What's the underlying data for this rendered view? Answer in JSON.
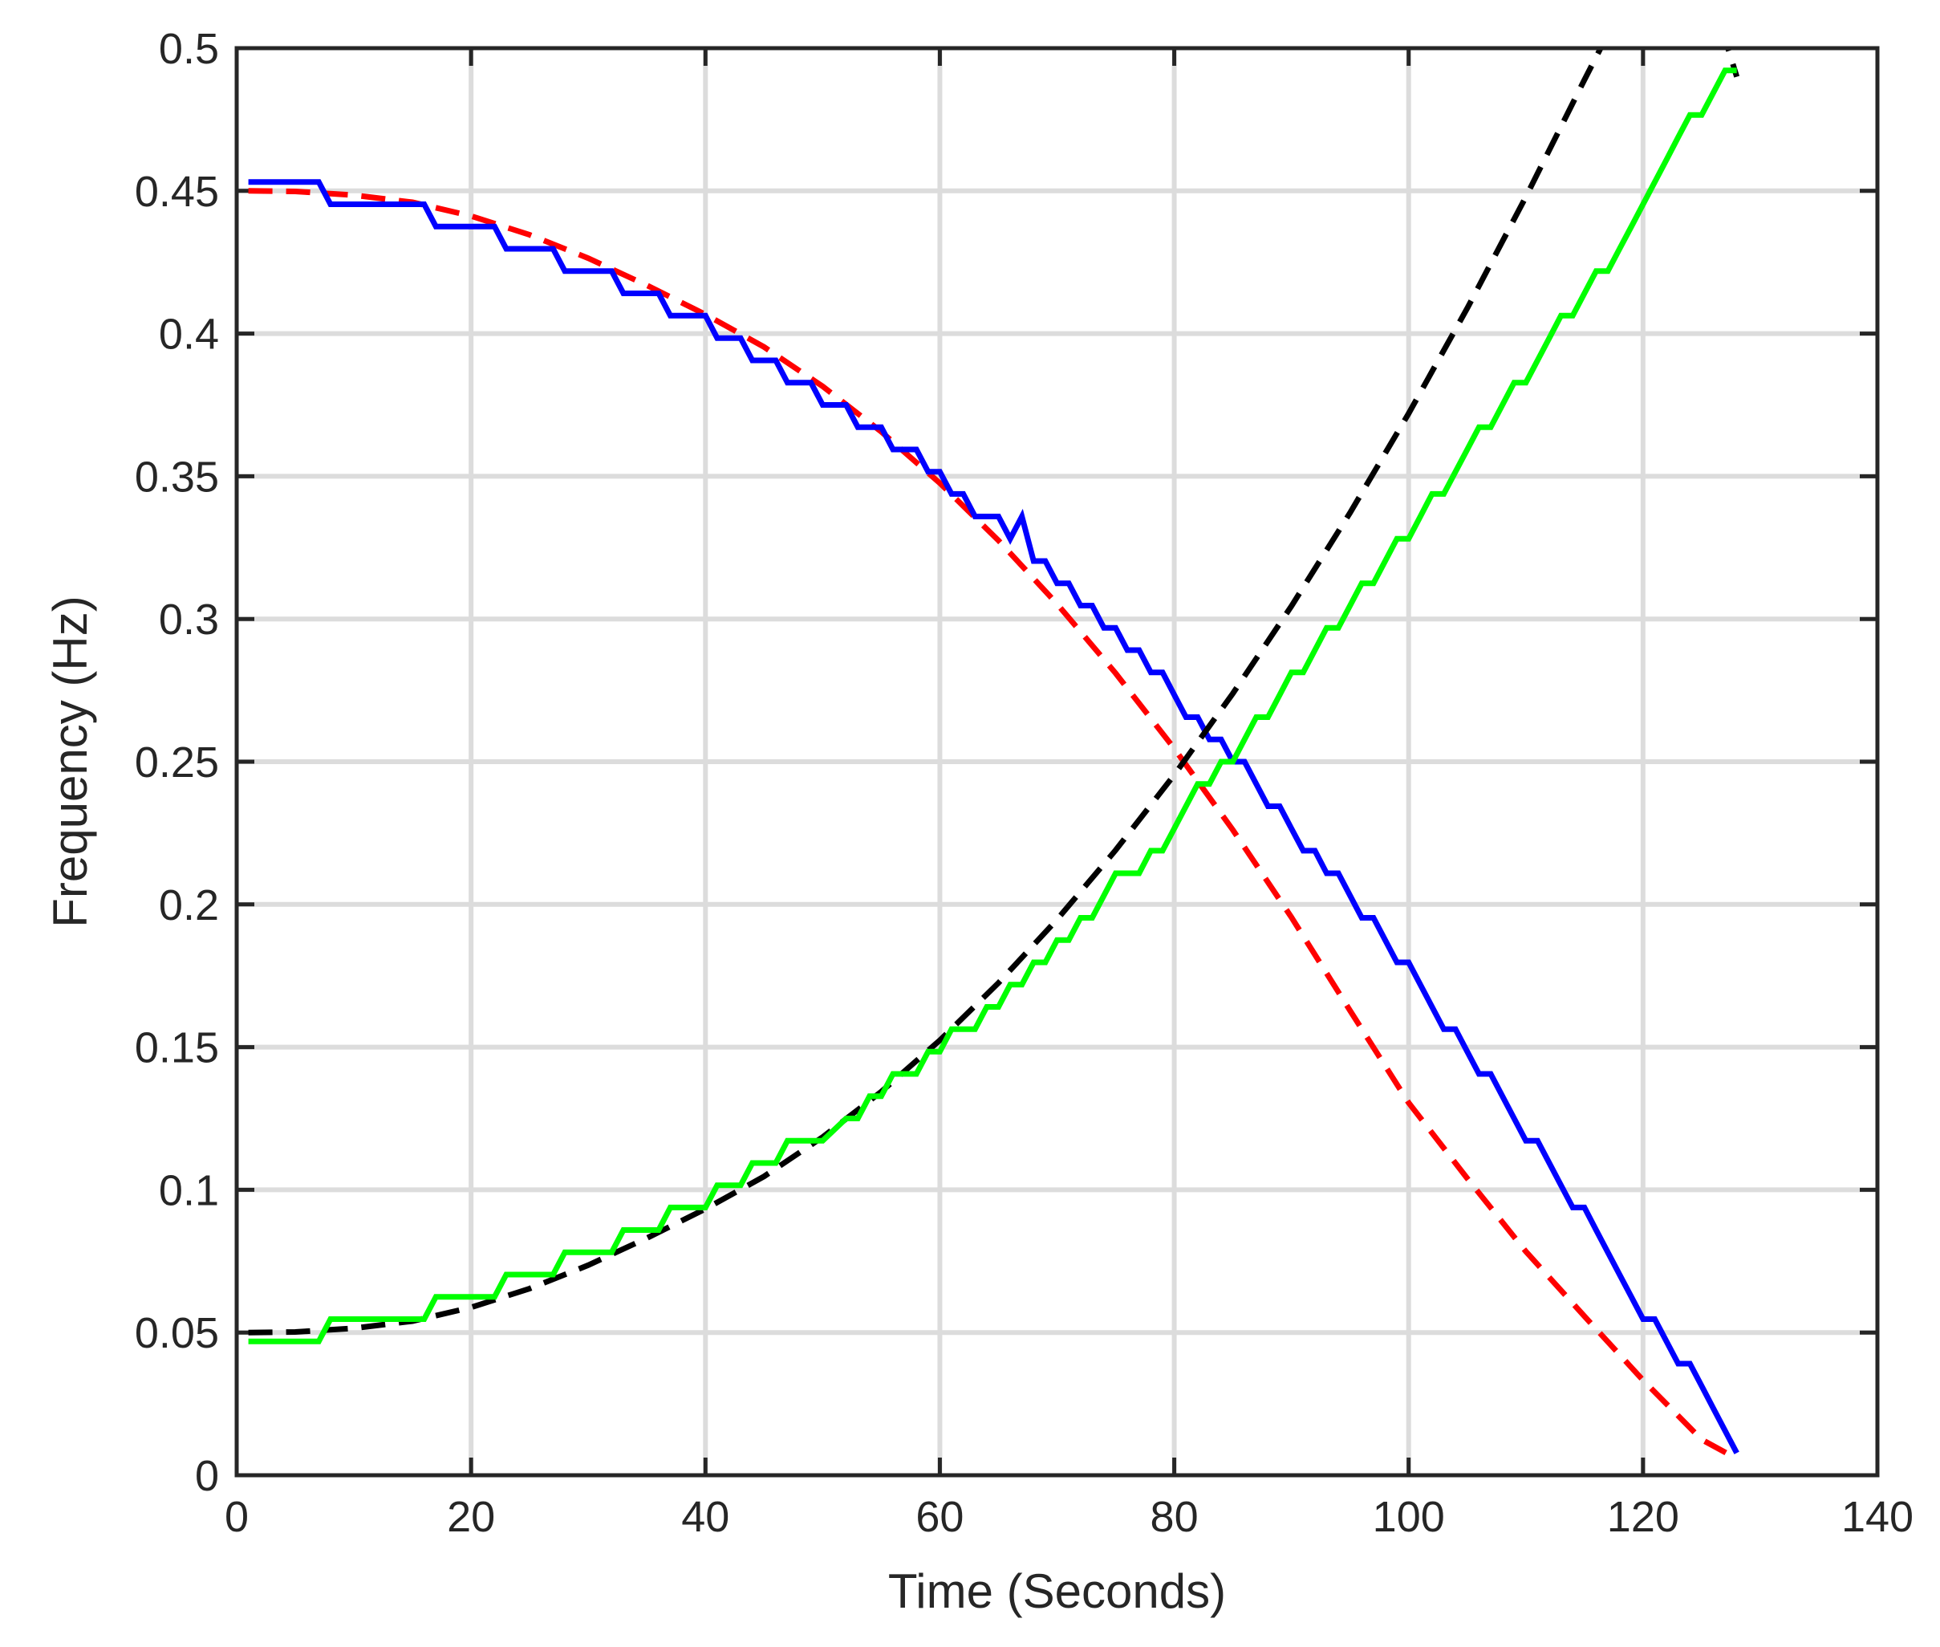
{
  "chart_data": {
    "type": "line",
    "title": "",
    "xlabel": "Time (Seconds)",
    "ylabel": "Frequency (Hz)",
    "xlim": [
      0,
      140
    ],
    "ylim": [
      0,
      0.5
    ],
    "xticks": [
      0,
      20,
      40,
      60,
      80,
      100,
      120,
      140
    ],
    "yticks": [
      0,
      0.05,
      0.1,
      0.15,
      0.2,
      0.25,
      0.3,
      0.35,
      0.4,
      0.45,
      0.5
    ],
    "xtick_labels": [
      "0",
      "20",
      "40",
      "60",
      "80",
      "100",
      "120",
      "140"
    ],
    "ytick_labels": [
      "0",
      "0.05",
      "0.1",
      "0.15",
      "0.2",
      "0.25",
      "0.3",
      "0.35",
      "0.4",
      "0.45",
      "0.5"
    ],
    "grid": true,
    "legend": "none",
    "colors": {
      "axis": "#262626",
      "grid": "#dcdcdc",
      "blue_step": "#0000ff",
      "red_dashed": "#ff0000",
      "green_step": "#00ff00",
      "black_dashed": "#000000"
    },
    "series": [
      {
        "color": "#ff0000",
        "style": "dashed",
        "x": [
          1,
          5,
          10,
          15,
          20,
          25,
          30,
          35,
          40,
          45,
          50,
          55,
          60,
          65,
          70,
          75,
          80,
          85,
          90,
          95,
          100,
          105,
          110,
          115,
          120,
          125,
          128
        ],
        "y": [
          0.45,
          0.4498,
          0.4485,
          0.446,
          0.4412,
          0.4346,
          0.4264,
          0.4169,
          0.4067,
          0.3953,
          0.3815,
          0.3656,
          0.3476,
          0.3275,
          0.3053,
          0.281,
          0.2546,
          0.2261,
          0.1955,
          0.1628,
          0.1305,
          0.104,
          0.0784,
          0.0557,
          0.0333,
          0.0125,
          0.0058
        ]
      },
      {
        "color": "#0000ff",
        "style": "solid",
        "x": [
          1,
          7,
          8,
          16,
          17,
          22,
          23,
          27,
          28,
          32,
          33,
          36,
          37,
          40,
          41,
          43,
          44,
          46,
          47,
          49,
          50,
          52,
          53,
          55,
          56,
          58,
          59,
          60,
          61,
          62,
          63,
          65,
          66,
          67,
          68,
          69,
          70,
          71,
          72,
          73,
          74,
          75,
          76,
          77,
          78,
          79,
          80,
          81,
          82,
          83,
          84,
          85,
          86,
          87,
          88,
          89,
          90,
          91,
          92,
          93,
          94,
          95,
          96,
          97,
          98,
          99,
          100,
          101,
          102,
          103,
          104,
          105,
          106,
          107,
          108,
          109,
          110,
          111,
          112,
          113,
          114,
          115,
          116,
          117,
          118,
          119,
          120,
          121,
          122,
          123,
          124,
          125,
          126,
          127,
          128
        ],
        "y": [
          0.4531,
          0.4531,
          0.4453,
          0.4453,
          0.4375,
          0.4375,
          0.4297,
          0.4297,
          0.4219,
          0.4219,
          0.4141,
          0.4141,
          0.4063,
          0.4063,
          0.3984,
          0.3984,
          0.3906,
          0.3906,
          0.3828,
          0.3828,
          0.375,
          0.375,
          0.3672,
          0.3672,
          0.3594,
          0.3594,
          0.3516,
          0.3516,
          0.3438,
          0.3438,
          0.3359,
          0.3359,
          0.3281,
          0.3359,
          0.3203,
          0.3203,
          0.3125,
          0.3125,
          0.3047,
          0.3047,
          0.2969,
          0.2969,
          0.2891,
          0.2891,
          0.2813,
          0.2813,
          0.2734,
          0.2656,
          0.2656,
          0.2578,
          0.2578,
          0.25,
          0.25,
          0.2422,
          0.2344,
          0.2344,
          0.2266,
          0.2188,
          0.2188,
          0.2109,
          0.2109,
          0.2031,
          0.1953,
          0.1953,
          0.1875,
          0.1797,
          0.1797,
          0.1719,
          0.1641,
          0.1563,
          0.1563,
          0.1484,
          0.1406,
          0.1406,
          0.1328,
          0.125,
          0.1172,
          0.1172,
          0.1094,
          0.1016,
          0.0938,
          0.0938,
          0.0859,
          0.0781,
          0.0703,
          0.0625,
          0.0547,
          0.0547,
          0.0469,
          0.0391,
          0.0391,
          0.0313,
          0.0234,
          0.0156,
          0.0078
        ]
      },
      {
        "color": "#000000",
        "style": "dashed",
        "x": [
          1,
          5,
          10,
          15,
          20,
          25,
          30,
          35,
          40,
          45,
          50,
          55,
          60,
          65,
          70,
          75,
          80,
          85,
          90,
          95,
          100,
          105,
          110,
          115,
          120,
          125,
          128
        ],
        "y": [
          0.05,
          0.0502,
          0.0515,
          0.054,
          0.0588,
          0.0654,
          0.0736,
          0.0831,
          0.0933,
          0.1047,
          0.1185,
          0.1344,
          0.1524,
          0.1725,
          0.1947,
          0.219,
          0.2454,
          0.2739,
          0.3045,
          0.3372,
          0.372,
          0.4089,
          0.4479,
          0.4889,
          0.529,
          0.53,
          0.49
        ]
      },
      {
        "color": "#00ff00",
        "style": "solid",
        "x": [
          1,
          7,
          8,
          16,
          17,
          22,
          23,
          27,
          28,
          32,
          33,
          36,
          37,
          40,
          41,
          43,
          44,
          46,
          47,
          49,
          50,
          52,
          53,
          54,
          55,
          56,
          58,
          59,
          60,
          61,
          63,
          64,
          65,
          66,
          67,
          68,
          69,
          70,
          71,
          72,
          73,
          74,
          75,
          76,
          77,
          78,
          79,
          80,
          81,
          82,
          83,
          84,
          85,
          86,
          87,
          88,
          89,
          90,
          91,
          92,
          93,
          94,
          95,
          96,
          97,
          98,
          99,
          100,
          101,
          102,
          103,
          104,
          105,
          106,
          107,
          108,
          109,
          110,
          111,
          112,
          113,
          114,
          115,
          116,
          117,
          118,
          119,
          120,
          121,
          122,
          123,
          124,
          125,
          126,
          127,
          128
        ],
        "y": [
          0.0469,
          0.0469,
          0.0547,
          0.0547,
          0.0625,
          0.0625,
          0.0703,
          0.0703,
          0.0781,
          0.0781,
          0.0859,
          0.0859,
          0.0938,
          0.0938,
          0.1016,
          0.1016,
          0.1094,
          0.1094,
          0.1172,
          0.1172,
          0.1172,
          0.125,
          0.125,
          0.1328,
          0.1328,
          0.1406,
          0.1406,
          0.1484,
          0.1484,
          0.1563,
          0.1563,
          0.1641,
          0.1641,
          0.1719,
          0.1719,
          0.1797,
          0.1797,
          0.1875,
          0.1875,
          0.1953,
          0.1953,
          0.2031,
          0.2109,
          0.2109,
          0.2109,
          0.2188,
          0.2188,
          0.2266,
          0.2344,
          0.2422,
          0.2422,
          0.25,
          0.25,
          0.2578,
          0.2656,
          0.2656,
          0.2734,
          0.2813,
          0.2813,
          0.2891,
          0.2969,
          0.2969,
          0.3047,
          0.3125,
          0.3125,
          0.3203,
          0.3281,
          0.3281,
          0.3359,
          0.3438,
          0.3438,
          0.3516,
          0.3594,
          0.3672,
          0.3672,
          0.375,
          0.3828,
          0.3828,
          0.3906,
          0.3984,
          0.4063,
          0.4063,
          0.4141,
          0.4219,
          0.4219,
          0.4297,
          0.4375,
          0.4453,
          0.4531,
          0.4609,
          0.4688,
          0.4766,
          0.4766,
          0.4844,
          0.4922,
          0.4922
        ]
      }
    ]
  }
}
